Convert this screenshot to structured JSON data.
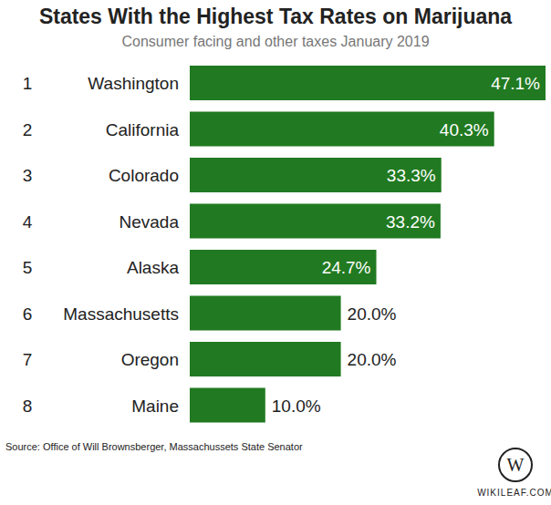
{
  "chart_data": {
    "type": "bar",
    "orientation": "horizontal",
    "title": "States With the Highest Tax Rates on Marijuana",
    "subtitle": "Consumer facing and other taxes January 2019",
    "ranks": [
      1,
      2,
      3,
      4,
      5,
      6,
      7,
      8
    ],
    "categories": [
      "Washington",
      "California",
      "Colorado",
      "Nevada",
      "Alaska",
      "Massachusetts",
      "Oregon",
      "Maine"
    ],
    "values": [
      47.1,
      40.3,
      33.3,
      33.2,
      24.7,
      20.0,
      20.0,
      10.0
    ],
    "value_labels": [
      "47.1%",
      "40.3%",
      "33.3%",
      "33.2%",
      "24.7%",
      "20.0%",
      "20.0%",
      "10.0%"
    ],
    "data_labels": true,
    "color": "#217a21",
    "xlim": [
      0,
      47.1
    ],
    "tick_labels": "y",
    "grid": false,
    "source": "Source: Office of Will Brownsberger, Massachussets State Senator",
    "logo": "W",
    "credit": "WIKILEAF.COM"
  }
}
